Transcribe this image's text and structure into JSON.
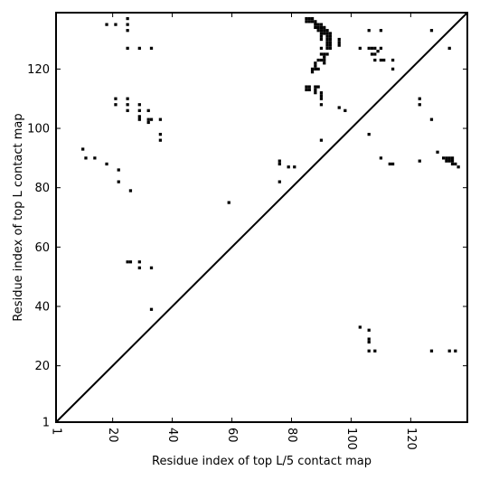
{
  "chart_data": {
    "type": "heatmap",
    "title": "",
    "xlabel": "Residue index of top L/5 contact map",
    "ylabel": "Residue index of top L contact map",
    "xlim": [
      1,
      139
    ],
    "ylim": [
      1,
      139
    ],
    "x_ticks": [
      1,
      20,
      40,
      60,
      80,
      100,
      120
    ],
    "y_ticks": [
      1,
      20,
      40,
      60,
      80,
      100,
      120
    ],
    "diagonal": true,
    "grid": false,
    "colors": {
      "contact": "#000000",
      "background": "#ffffff",
      "diagonal": "#000000"
    },
    "upper_triangle_contacts": [
      [
        18,
        135
      ],
      [
        21,
        135
      ],
      [
        25,
        137
      ],
      [
        25,
        135
      ],
      [
        25,
        133
      ],
      [
        25,
        127
      ],
      [
        29,
        127
      ],
      [
        33,
        127
      ],
      [
        21,
        110
      ],
      [
        21,
        108
      ],
      [
        25,
        110
      ],
      [
        25,
        108
      ],
      [
        25,
        106
      ],
      [
        29,
        108
      ],
      [
        29,
        106
      ],
      [
        29,
        104
      ],
      [
        29,
        103
      ],
      [
        32,
        106
      ],
      [
        32,
        103
      ],
      [
        33,
        103
      ],
      [
        32,
        102
      ],
      [
        36,
        103
      ],
      [
        36,
        98
      ],
      [
        36,
        96
      ],
      [
        10,
        93
      ],
      [
        11,
        90
      ],
      [
        14,
        90
      ],
      [
        18,
        88
      ],
      [
        22,
        86
      ],
      [
        22,
        82
      ],
      [
        26,
        79
      ],
      [
        25,
        55
      ],
      [
        26,
        55
      ],
      [
        29,
        55
      ],
      [
        29,
        53
      ],
      [
        33,
        53
      ],
      [
        33,
        39
      ],
      [
        59,
        75
      ],
      [
        76,
        89
      ],
      [
        76,
        88
      ],
      [
        76,
        82
      ],
      [
        79,
        87
      ],
      [
        81,
        87
      ],
      [
        85,
        137
      ],
      [
        86,
        137
      ],
      [
        87,
        137
      ],
      [
        85,
        136
      ],
      [
        86,
        136
      ],
      [
        87,
        136
      ],
      [
        88,
        136
      ],
      [
        88,
        135
      ],
      [
        89,
        135
      ],
      [
        90,
        135
      ],
      [
        88,
        134
      ],
      [
        89,
        134
      ],
      [
        90,
        134
      ],
      [
        91,
        134
      ],
      [
        89,
        133
      ],
      [
        90,
        133
      ],
      [
        91,
        133
      ],
      [
        92,
        133
      ],
      [
        90,
        132
      ],
      [
        91,
        132
      ],
      [
        92,
        132
      ],
      [
        93,
        132
      ],
      [
        90,
        131
      ],
      [
        92,
        131
      ],
      [
        93,
        131
      ],
      [
        90,
        130
      ],
      [
        92,
        130
      ],
      [
        93,
        130
      ],
      [
        92,
        129
      ],
      [
        93,
        129
      ],
      [
        92,
        128
      ],
      [
        93,
        128
      ],
      [
        92,
        127
      ],
      [
        93,
        127
      ],
      [
        96,
        130
      ],
      [
        96,
        129
      ],
      [
        96,
        128
      ],
      [
        90,
        127
      ],
      [
        90,
        125
      ],
      [
        91,
        125
      ],
      [
        92,
        125
      ],
      [
        91,
        124
      ],
      [
        89,
        123
      ],
      [
        90,
        123
      ],
      [
        91,
        123
      ],
      [
        91,
        122
      ],
      [
        88,
        122
      ],
      [
        88,
        121
      ],
      [
        88,
        120
      ],
      [
        89,
        120
      ],
      [
        87,
        120
      ],
      [
        87,
        119
      ],
      [
        85,
        114
      ],
      [
        86,
        114
      ],
      [
        88,
        114
      ],
      [
        89,
        114
      ],
      [
        85,
        113
      ],
      [
        86,
        113
      ],
      [
        88,
        113
      ],
      [
        88,
        112
      ],
      [
        90,
        112
      ],
      [
        90,
        111
      ],
      [
        90,
        110
      ],
      [
        90,
        108
      ],
      [
        96,
        107
      ],
      [
        98,
        106
      ],
      [
        90,
        96
      ],
      [
        103,
        127
      ],
      [
        106,
        133
      ],
      [
        110,
        133
      ],
      [
        106,
        127
      ],
      [
        107,
        127
      ],
      [
        108,
        127
      ],
      [
        110,
        127
      ],
      [
        107,
        125
      ],
      [
        108,
        125
      ],
      [
        108,
        123
      ],
      [
        110,
        123
      ],
      [
        111,
        123
      ],
      [
        114,
        123
      ],
      [
        114,
        120
      ],
      [
        109,
        126
      ],
      [
        106,
        98
      ],
      [
        110,
        90
      ],
      [
        113,
        88
      ],
      [
        114,
        88
      ],
      [
        123,
        89
      ],
      [
        123,
        110
      ],
      [
        123,
        108
      ],
      [
        127,
        103
      ],
      [
        127,
        133
      ],
      [
        133,
        127
      ],
      [
        129,
        92
      ],
      [
        131,
        90
      ],
      [
        132,
        90
      ],
      [
        133,
        90
      ],
      [
        134,
        90
      ],
      [
        132,
        89
      ],
      [
        133,
        89
      ],
      [
        134,
        89
      ],
      [
        134,
        88
      ],
      [
        135,
        88
      ],
      [
        136,
        87
      ],
      [
        103,
        33
      ],
      [
        106,
        32
      ],
      [
        106,
        29
      ],
      [
        106,
        28
      ],
      [
        106,
        25
      ],
      [
        108,
        25
      ],
      [
        127,
        25
      ],
      [
        133,
        25
      ],
      [
        135,
        25
      ]
    ]
  }
}
